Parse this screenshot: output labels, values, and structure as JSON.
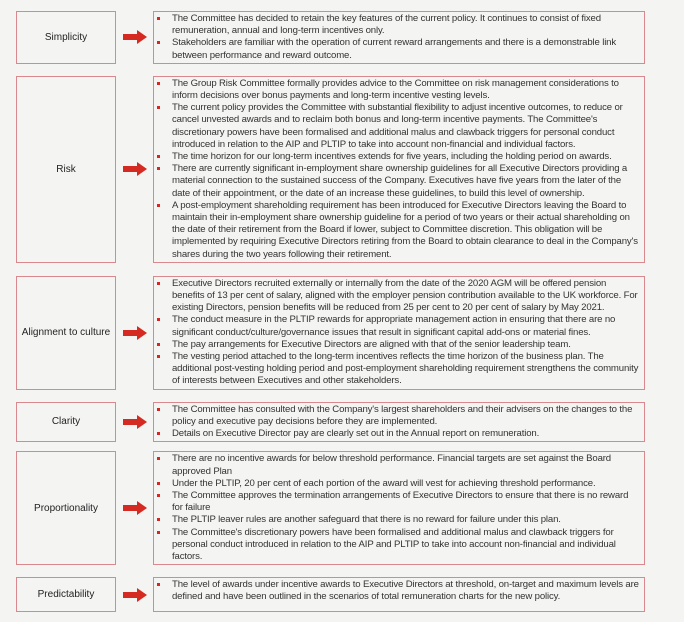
{
  "accent_color": "#d42a22",
  "rows": [
    {
      "label": "Simplicity",
      "bullets": [
        "The Committee has decided to retain the key features of the current policy.  It continues to consist of fixed remuneration, annual and long-term incentives only.",
        "Stakeholders are familiar with the operation of current reward arrangements and there is a demonstrable link between performance and reward outcome."
      ]
    },
    {
      "label": "Risk",
      "bullets": [
        "The Group Risk Committee formally provides advice to the Committee on risk management considerations to inform decisions over bonus payments and long-term incentive vesting levels.",
        "The current policy provides the Committee with substantial flexibility to adjust incentive outcomes, to reduce or cancel unvested awards and to reclaim both bonus and long-term incentive payments. The Committee's discretionary powers have been formalised and additional malus and clawback triggers for personal conduct introduced in relation to the AIP and PLTIP to take into account non-financial and individual factors.",
        "The time horizon for our long-term incentives extends for five years, including the holding period on awards.",
        "There are currently significant in-employment share ownership guidelines for all Executive Directors providing a material connection to the sustained success of the Company. Executives have five years from the later of the date of their appointment, or the date of an increase these guidelines, to build this level of ownership.",
        "A post-employment shareholding requirement has been introduced for Executive Directors leaving the Board to maintain their in-employment share ownership guideline for a period  of two years or their actual shareholding on the date of their retirement from the Board if lower,  subject to Committee discretion. This obligation will be implemented by requiring Executive Directors retiring from the Board to obtain clearance to deal in the Company's shares during the two years following their retirement."
      ]
    },
    {
      "label": "Alignment to culture",
      "bullets": [
        "Executive Directors recruited externally or internally from the date of the 2020 AGM will be offered pension benefits of 13 per cent of salary, aligned with the employer pension contribution available to the UK workforce. For existing Directors, pension benefits will be reduced from 25 per cent to 20 per cent of salary by May 2021.",
        "The conduct measure in the PLTIP rewards for appropriate management action in ensuring that there are no significant conduct/culture/governance issues that result in significant capital add-ons or material fines.",
        "The pay arrangements for Executive Directors are aligned with that of the senior leadership team.",
        "The vesting period attached to the long-term incentives reflects the time horizon of the business plan. The additional post-vesting holding period and post-employment shareholding requirement strengthens the community of interests between Executives and other stakeholders."
      ]
    },
    {
      "label": "Clarity",
      "bullets": [
        "The Committee has consulted with the Company's largest shareholders and their advisers on the changes to the policy and executive pay decisions before they are implemented.",
        "Details on Executive Director pay are clearly set out in the Annual report on remuneration."
      ]
    },
    {
      "label": "Proportionality",
      "bullets": [
        "There are no incentive awards for below threshold performance. Financial targets are set against the Board approved Plan",
        "Under the PLTIP, 20 per cent of each portion of the award will vest for achieving threshold performance.",
        "The Committee approves the termination arrangements of Executive Directors to ensure that there is no reward for failure",
        "The PLTIP leaver rules are another safeguard that there is no reward for failure under this plan.",
        "The Committee's discretionary powers have been formalised and additional malus and clawback triggers for personal conduct introduced in relation to the AIP and PLTIP to take into account non-financial and individual factors."
      ]
    },
    {
      "label": "Predictability",
      "bullets": [
        "The level of awards under incentive awards to Executive Directors at threshold, on-target and maximum levels are defined and have been outlined in the scenarios of total remuneration charts for the new policy."
      ]
    }
  ]
}
